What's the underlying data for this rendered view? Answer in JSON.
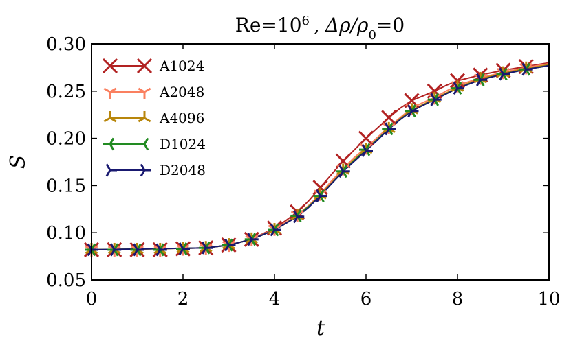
{
  "chart_data": {
    "type": "line",
    "title": "Re = 10⁶ , Δρ/ρ₀ = 0",
    "title_parts": {
      "re": "Re",
      "eq": "=",
      "exp_base": "10",
      "exp": "6",
      "sep": ",",
      "delta": "Δρ/ρ",
      "sub0": "0",
      "eq2": "=",
      "zero": "0"
    },
    "xlabel": "t",
    "ylabel": "S",
    "xlim": [
      0,
      10
    ],
    "ylim": [
      0.05,
      0.3
    ],
    "xticks": [
      "0",
      "2",
      "4",
      "6",
      "8",
      "10"
    ],
    "yticks": [
      "0.05",
      "0.10",
      "0.15",
      "0.20",
      "0.25",
      "0.30"
    ],
    "marker_x": [
      0,
      0.5,
      1,
      1.5,
      2,
      2.5,
      3,
      3.5,
      4,
      4.5,
      5,
      5.5,
      6,
      6.5,
      7,
      7.5,
      8,
      8.5,
      9,
      9.5
    ],
    "line_x": [
      0,
      2.5,
      3,
      3.5,
      4,
      4.25,
      4.5,
      4.75,
      5,
      5.25,
      5.5,
      5.75,
      6,
      6.25,
      6.5,
      6.75,
      7,
      7.25,
      7.5,
      7.75,
      8,
      8.5,
      9,
      9.5,
      10
    ],
    "legend_position": "upper-left",
    "series": [
      {
        "name": "A1024",
        "color": "#b22222",
        "marker": "x",
        "marker_y": [
          0.082,
          0.082,
          0.082,
          0.082,
          0.083,
          0.084,
          0.087,
          0.093,
          0.105,
          0.122,
          0.148,
          0.176,
          0.2,
          0.222,
          0.24,
          0.25,
          0.261,
          0.267,
          0.272,
          0.276
        ],
        "line_y": [
          0.082,
          0.084,
          0.087,
          0.093,
          0.105,
          0.113,
          0.122,
          0.134,
          0.148,
          0.162,
          0.176,
          0.188,
          0.2,
          0.211,
          0.222,
          0.232,
          0.24,
          0.245,
          0.25,
          0.256,
          0.261,
          0.267,
          0.272,
          0.276,
          0.28
        ]
      },
      {
        "name": "A2048",
        "color": "#fa8060",
        "marker": "tri_up",
        "marker_y": [
          0.082,
          0.082,
          0.082,
          0.082,
          0.083,
          0.084,
          0.087,
          0.093,
          0.104,
          0.119,
          0.141,
          0.168,
          0.19,
          0.212,
          0.232,
          0.243,
          0.256,
          0.264,
          0.27,
          0.275
        ],
        "line_y": [
          0.082,
          0.084,
          0.087,
          0.093,
          0.104,
          0.111,
          0.119,
          0.129,
          0.141,
          0.155,
          0.168,
          0.18,
          0.19,
          0.201,
          0.212,
          0.222,
          0.232,
          0.238,
          0.243,
          0.25,
          0.256,
          0.264,
          0.27,
          0.275,
          0.279
        ]
      },
      {
        "name": "A4096",
        "color": "#b8860b",
        "marker": "tri_down",
        "marker_y": [
          0.082,
          0.082,
          0.082,
          0.082,
          0.083,
          0.084,
          0.087,
          0.093,
          0.103,
          0.118,
          0.14,
          0.166,
          0.188,
          0.21,
          0.23,
          0.242,
          0.254,
          0.263,
          0.269,
          0.274
        ],
        "line_y": [
          0.082,
          0.084,
          0.087,
          0.093,
          0.103,
          0.11,
          0.118,
          0.128,
          0.14,
          0.153,
          0.166,
          0.178,
          0.188,
          0.199,
          0.21,
          0.221,
          0.23,
          0.236,
          0.242,
          0.248,
          0.254,
          0.263,
          0.269,
          0.274,
          0.278
        ]
      },
      {
        "name": "D1024",
        "color": "#228b22",
        "marker": "tri_right",
        "marker_y": [
          0.082,
          0.082,
          0.082,
          0.082,
          0.083,
          0.084,
          0.087,
          0.093,
          0.103,
          0.118,
          0.139,
          0.165,
          0.188,
          0.21,
          0.229,
          0.241,
          0.253,
          0.262,
          0.268,
          0.273
        ],
        "line_y": [
          0.082,
          0.084,
          0.087,
          0.093,
          0.103,
          0.11,
          0.118,
          0.128,
          0.139,
          0.152,
          0.165,
          0.177,
          0.188,
          0.199,
          0.21,
          0.22,
          0.229,
          0.235,
          0.241,
          0.247,
          0.253,
          0.262,
          0.268,
          0.273,
          0.277
        ]
      },
      {
        "name": "D2048",
        "color": "#191970",
        "marker": "tri_left",
        "marker_y": [
          0.082,
          0.082,
          0.082,
          0.082,
          0.083,
          0.084,
          0.087,
          0.093,
          0.103,
          0.117,
          0.139,
          0.165,
          0.187,
          0.21,
          0.229,
          0.241,
          0.253,
          0.262,
          0.268,
          0.273
        ],
        "line_y": [
          0.082,
          0.084,
          0.087,
          0.093,
          0.103,
          0.11,
          0.117,
          0.127,
          0.139,
          0.152,
          0.165,
          0.176,
          0.187,
          0.198,
          0.21,
          0.22,
          0.229,
          0.235,
          0.241,
          0.247,
          0.253,
          0.262,
          0.268,
          0.273,
          0.277
        ]
      }
    ]
  }
}
